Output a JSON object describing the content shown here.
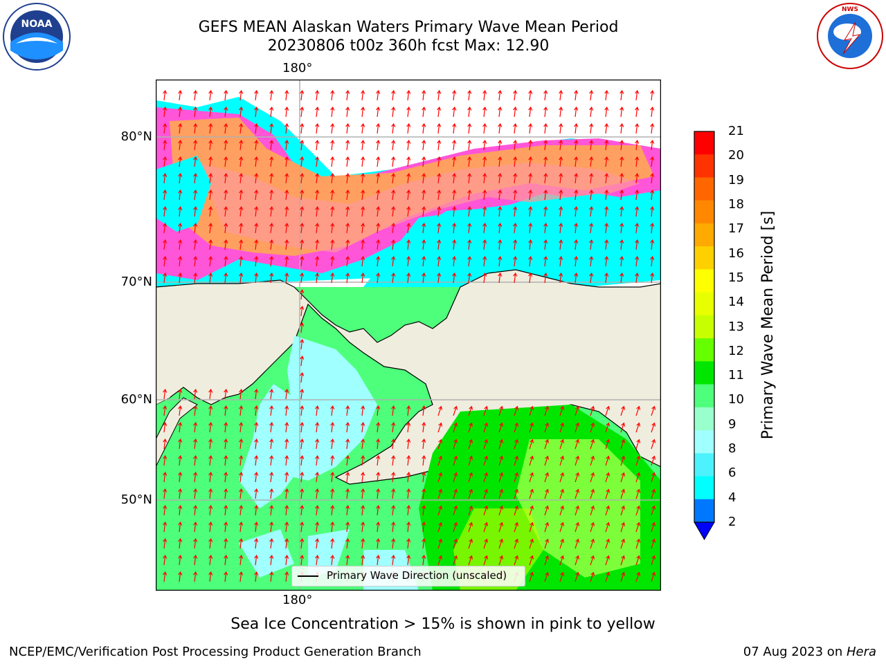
{
  "title_line1": "GEFS MEAN Alaskan Waters Primary Wave Mean Period",
  "title_line2": "20230806 t00z 360h fcst   Max: 12.90",
  "logos": {
    "left": "NOAA",
    "right": "NATIONAL WEATHER SERVICE"
  },
  "map": {
    "lon_label_top": "180°",
    "lon_label_bottom": "180°",
    "lat_labels": [
      "80°N",
      "70°N",
      "60°N",
      "50°N"
    ],
    "legend_label": "Primary Wave Direction (unscaled)"
  },
  "colorbar": {
    "label": "Primary Wave Mean Period [s]",
    "ticks": [
      "21",
      "20",
      "19",
      "18",
      "17",
      "16",
      "15",
      "14",
      "13",
      "12",
      "11",
      "10",
      "9",
      "8",
      "6",
      "4",
      "2"
    ],
    "colors": [
      "#ff0000",
      "#ff3300",
      "#ff6600",
      "#ff8800",
      "#ffaa00",
      "#ffd000",
      "#ffff00",
      "#e8ff00",
      "#c8ff00",
      "#66ff00",
      "#00e600",
      "#4dff7a",
      "#99ffcc",
      "#a0ffff",
      "#4df2ff",
      "#00ffff",
      "#0077ff",
      "#0000ff"
    ]
  },
  "sea_ice_note": "Sea Ice Concentration > 15% is shown in pink to yellow",
  "footer_left": "NCEP/EMC/Verification Post Processing Product Generation Branch",
  "footer_right_prefix": "07 Aug 2023 on ",
  "footer_right_machine": "Hera"
}
